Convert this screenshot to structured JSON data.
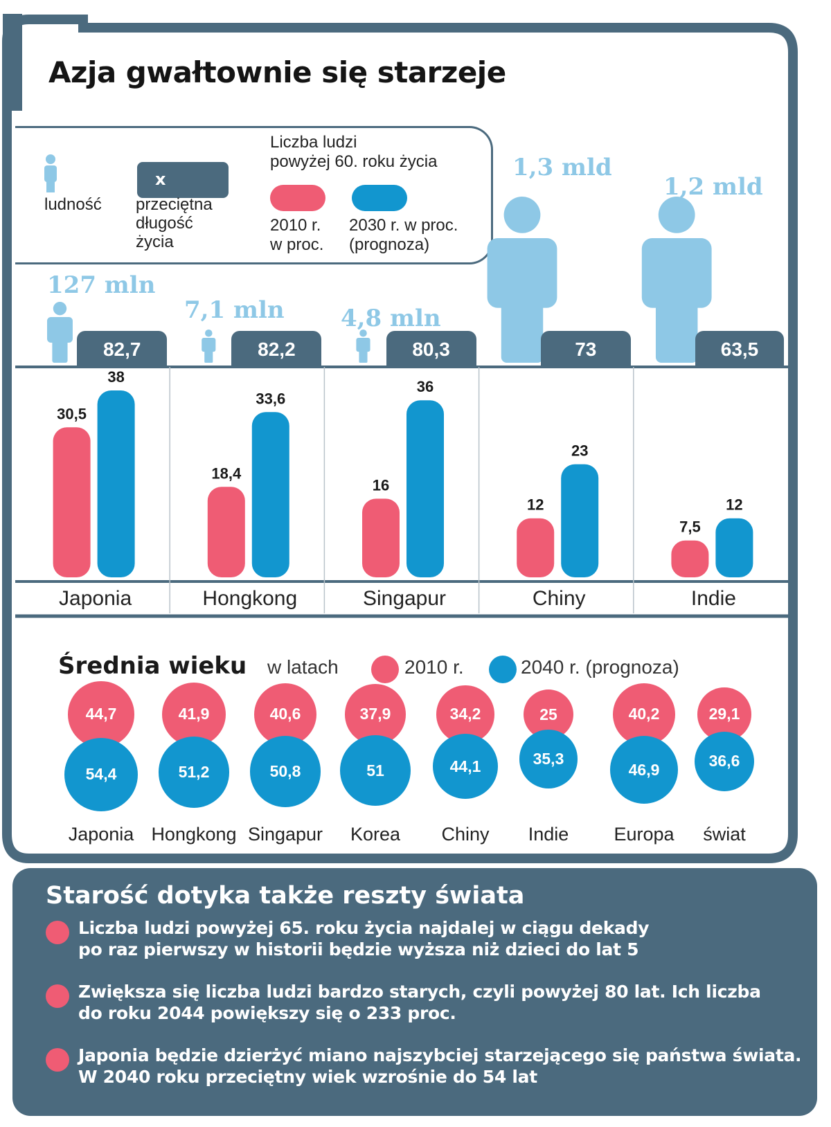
{
  "title": "Azja gwałtownie się starzeje",
  "legend": {
    "population_label": "ludność",
    "life_expectancy_box": "x",
    "life_expectancy_label_1": "przeciętna",
    "life_expectancy_label_2": "długość",
    "life_expectancy_label_3": "życia",
    "over60_title_1": "Liczba ludzi",
    "over60_title_2": "powyżej 60. roku życia",
    "year2010_1": "2010 r.",
    "year2010_2": "w proc.",
    "year2030_1": "2030 r. w proc.",
    "year2030_2": "(prognoza)"
  },
  "colors": {
    "red": "#ef5c74",
    "blue": "#1296cf",
    "slate": "#4b6a7e",
    "light_blue": "#8ec8e6"
  },
  "chart_data": [
    {
      "type": "bar",
      "title": "Liczba ludzi powyżej 60. roku życia",
      "categories": [
        "Japonia",
        "Hongkong",
        "Singapur",
        "Chiny",
        "Indie"
      ],
      "series": [
        {
          "name": "2010 r. w proc.",
          "values": [
            30.5,
            18.4,
            16,
            12,
            7.5
          ],
          "labels": [
            "30,5",
            "18,4",
            "16",
            "12",
            "7,5"
          ]
        },
        {
          "name": "2030 r. w proc. (prognoza)",
          "values": [
            38,
            33.6,
            36,
            23,
            12
          ],
          "labels": [
            "38",
            "33,6",
            "36",
            "23",
            "12"
          ]
        }
      ],
      "population": [
        "127 mln",
        "7,1 mln",
        "4,8 mln",
        "1,3 mld",
        "1,2 mld"
      ],
      "population_millions": [
        127,
        7.1,
        4.8,
        1300,
        1200
      ],
      "life_expectancy": [
        "82,7",
        "82,2",
        "80,3",
        "73",
        "63,5"
      ],
      "ylim": [
        0,
        38
      ]
    },
    {
      "type": "scatter",
      "title": "Średnia wieku",
      "unit": "w latach",
      "categories": [
        "Japonia",
        "Hongkong",
        "Singapur",
        "Korea",
        "Chiny",
        "Indie",
        "Europa",
        "świat"
      ],
      "series": [
        {
          "name": "2010 r.",
          "values": [
            44.7,
            41.9,
            40.6,
            37.9,
            34.2,
            25,
            40.2,
            29.1
          ],
          "labels": [
            "44,7",
            "41,9",
            "40,6",
            "37,9",
            "34,2",
            "25",
            "40,2",
            "29,1"
          ]
        },
        {
          "name": "2040 r. (prognoza)",
          "values": [
            54.4,
            51.2,
            50.8,
            51,
            44.1,
            35.3,
            46.9,
            36.6
          ],
          "labels": [
            "54,4",
            "51,2",
            "50,8",
            "51",
            "44,1",
            "35,3",
            "46,9",
            "36,6"
          ]
        }
      ]
    }
  ],
  "median_age": {
    "title": "Średnia wieku",
    "unit": "w latach",
    "legend_2010": "2010 r.",
    "legend_2040": "2040 r. (prognoza)"
  },
  "bottom": {
    "title": "Starość dotyka także reszty świata",
    "bullets": [
      {
        "line1": "Liczba ludzi powyżej 65. roku życia najdalej w ciągu dekady",
        "line2": "po raz pierwszy w historii będzie wyższa niż dzieci do lat 5"
      },
      {
        "line1": "Zwiększa się liczba ludzi bardzo starych, czyli powyżej 80 lat. Ich liczba",
        "line2": "do roku 2044 powiększy się o 233 proc."
      },
      {
        "line1": "Japonia będzie dzierżyć miano najszybciej starzejącego się państwa świata.",
        "line2": "W 2040 roku przeciętny wiek wzrośnie do 54 lat"
      }
    ]
  }
}
